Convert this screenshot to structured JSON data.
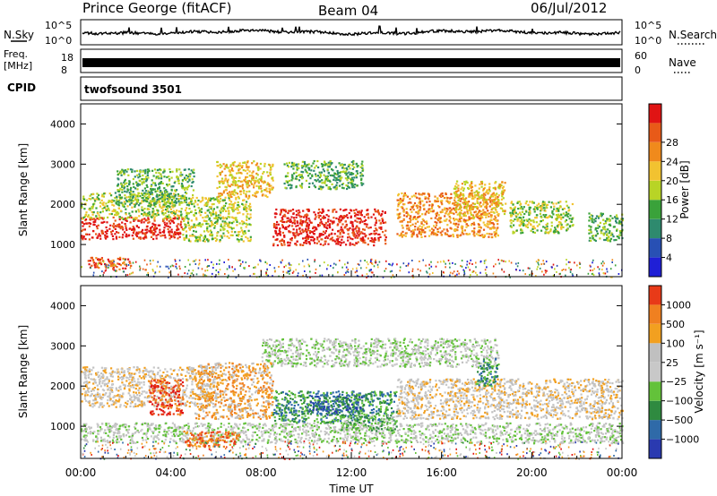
{
  "header": {
    "title": "Prince George (fitACF)",
    "beam": "Beam 04",
    "date": "06/Jul/2012"
  },
  "top_panels": {
    "nsky_label": "N.Sky",
    "nsky_ticks": [
      "10^5",
      "10^0"
    ],
    "nsearch_label": "N.Search",
    "nsearch_ticks": [
      "10^5",
      "10^0"
    ],
    "freq_label": "Freq.",
    "freq_unit": "[MHz]",
    "freq_ticks": [
      "18",
      "8"
    ],
    "nave_label": "Nave",
    "nave_ticks": [
      "60",
      "0"
    ],
    "cpid_label": "CPID",
    "cpid_value": "twofsound 3501"
  },
  "colors": {
    "power_scale": [
      "#1f1fd6",
      "#2850b4",
      "#2e8a6e",
      "#3aa23a",
      "#b8d426",
      "#f2c230",
      "#f08a1c",
      "#e85a18",
      "#e01414"
    ],
    "velocity_scale": [
      "#2a3ab0",
      "#2f6aa8",
      "#2f8a40",
      "#63c23a",
      "#c8c8c8",
      "#c0c0c0",
      "#f2a020",
      "#f08020",
      "#e83a18",
      "#e01414"
    ]
  },
  "chart_data": [
    {
      "type": "heatmap",
      "name": "power",
      "ylabel": "Slant Range [km]",
      "ylim": [
        200,
        4500
      ],
      "yticks": [
        "1000",
        "2000",
        "3000",
        "4000"
      ],
      "xlim": [
        0,
        24
      ],
      "colorbar": {
        "label": "Power [dB]",
        "ticks": [
          "4",
          "8",
          "12",
          "16",
          "20",
          "24",
          "28"
        ]
      },
      "regions": [
        {
          "t0": 0.0,
          "t1": 4.5,
          "r0": 1150,
          "r1": 1700,
          "level": 8
        },
        {
          "t0": 0.0,
          "t1": 4.5,
          "r0": 1650,
          "r1": 2300,
          "level": 4
        },
        {
          "t0": 0.3,
          "t1": 2.2,
          "r0": 400,
          "r1": 700,
          "level": 7
        },
        {
          "t0": 1.5,
          "t1": 5.0,
          "r0": 2000,
          "r1": 2900,
          "level": 3
        },
        {
          "t0": 4.5,
          "t1": 7.5,
          "r0": 1100,
          "r1": 2200,
          "level": 4
        },
        {
          "t0": 6.0,
          "t1": 8.5,
          "r0": 2200,
          "r1": 3100,
          "level": 5
        },
        {
          "t0": 8.5,
          "t1": 13.5,
          "r0": 1000,
          "r1": 1900,
          "level": 8
        },
        {
          "t0": 9.0,
          "t1": 12.5,
          "r0": 2400,
          "r1": 3100,
          "level": 3
        },
        {
          "t0": 14.0,
          "t1": 18.5,
          "r0": 1200,
          "r1": 2300,
          "level": 6
        },
        {
          "t0": 16.5,
          "t1": 18.8,
          "r0": 1700,
          "r1": 2600,
          "level": 5
        },
        {
          "t0": 19.0,
          "t1": 21.8,
          "r0": 1300,
          "r1": 2100,
          "level": 4
        },
        {
          "t0": 22.5,
          "t1": 24.0,
          "r0": 1100,
          "r1": 1800,
          "level": 3
        }
      ]
    },
    {
      "type": "heatmap",
      "name": "velocity",
      "ylabel": "Slant Range [km]",
      "ylim": [
        200,
        4500
      ],
      "yticks": [
        "1000",
        "2000",
        "3000",
        "4000"
      ],
      "xlim": [
        0,
        24
      ],
      "xticks": [
        "00:00",
        "04:00",
        "08:00",
        "12:00",
        "16:00",
        "20:00",
        "00:00"
      ],
      "xlabel": "Time UT",
      "colorbar": {
        "label": "Velocity [m s⁻¹]",
        "ticks": [
          "1000",
          "500",
          "100",
          "25",
          "−25",
          "−100",
          "−500",
          "−1000"
        ]
      },
      "regions": [
        {
          "t0": 0.0,
          "t1": 24.0,
          "r0": 600,
          "r1": 1100,
          "level": 4
        },
        {
          "t0": 0.0,
          "t1": 6.0,
          "r0": 1500,
          "r1": 2500,
          "level": 5
        },
        {
          "t0": 3.0,
          "t1": 4.5,
          "r0": 1300,
          "r1": 2200,
          "level": 8
        },
        {
          "t0": 4.5,
          "t1": 7.0,
          "r0": 500,
          "r1": 900,
          "level": 7
        },
        {
          "t0": 5.0,
          "t1": 8.5,
          "r0": 1200,
          "r1": 2600,
          "level": 6
        },
        {
          "t0": 8.5,
          "t1": 14.0,
          "r0": 1100,
          "r1": 1900,
          "level": 2
        },
        {
          "t0": 10.0,
          "t1": 12.5,
          "r0": 1300,
          "r1": 1800,
          "level": 1
        },
        {
          "t0": 11.5,
          "t1": 14.0,
          "r0": 900,
          "r1": 1300,
          "level": 3
        },
        {
          "t0": 8.0,
          "t1": 18.5,
          "r0": 2500,
          "r1": 3200,
          "level": 4
        },
        {
          "t0": 14.0,
          "t1": 24.0,
          "r0": 1200,
          "r1": 2200,
          "level": 5
        },
        {
          "t0": 17.5,
          "t1": 18.5,
          "r0": 2000,
          "r1": 2700,
          "level": 2
        }
      ]
    }
  ]
}
